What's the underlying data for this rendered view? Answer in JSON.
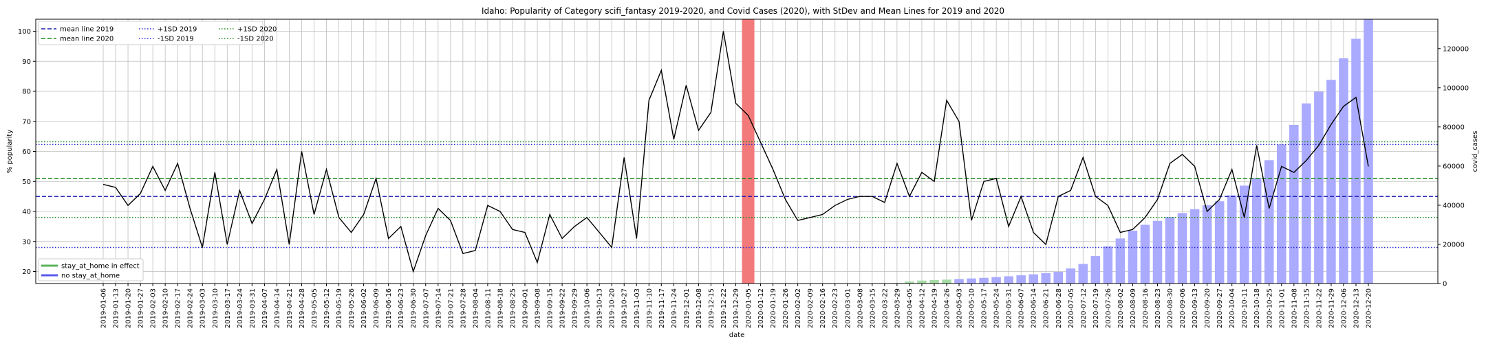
{
  "chart_data": {
    "type": "line",
    "title": "Idaho: Popularity of Category scifi_fantasy 2019-2020, and Covid Cases (2020), with StDev and Mean Lines for 2019 and 2020",
    "xlabel": "date",
    "ylabel": "% popularity",
    "y2label": "covid_cases",
    "ylim": [
      16,
      104
    ],
    "y2lim": [
      0,
      135000
    ],
    "yticks": [
      20,
      30,
      40,
      50,
      60,
      70,
      80,
      90,
      100
    ],
    "y2ticks": [
      0,
      20000,
      40000,
      60000,
      80000,
      100000,
      120000
    ],
    "grid": true,
    "x": [
      "2019-01-06",
      "2019-01-13",
      "2019-01-20",
      "2019-01-27",
      "2019-02-03",
      "2019-02-10",
      "2019-02-17",
      "2019-02-24",
      "2019-03-03",
      "2019-03-10",
      "2019-03-17",
      "2019-03-24",
      "2019-03-31",
      "2019-04-07",
      "2019-04-14",
      "2019-04-21",
      "2019-04-28",
      "2019-05-05",
      "2019-05-12",
      "2019-05-19",
      "2019-05-26",
      "2019-06-02",
      "2019-06-09",
      "2019-06-16",
      "2019-06-23",
      "2019-06-30",
      "2019-07-07",
      "2019-07-14",
      "2019-07-21",
      "2019-07-28",
      "2019-08-04",
      "2019-08-11",
      "2019-08-18",
      "2019-08-25",
      "2019-09-01",
      "2019-09-08",
      "2019-09-15",
      "2019-09-22",
      "2019-09-29",
      "2019-10-06",
      "2019-10-13",
      "2019-10-20",
      "2019-10-27",
      "2019-11-03",
      "2019-11-10",
      "2019-11-17",
      "2019-11-24",
      "2019-12-01",
      "2019-12-08",
      "2019-12-15",
      "2019-12-22",
      "2019-12-29",
      "2020-01-05",
      "2020-01-12",
      "2020-01-19",
      "2020-01-26",
      "2020-02-02",
      "2020-02-09",
      "2020-02-16",
      "2020-02-23",
      "2020-03-01",
      "2020-03-08",
      "2020-03-15",
      "2020-03-22",
      "2020-03-29",
      "2020-04-05",
      "2020-04-12",
      "2020-04-19",
      "2020-04-26",
      "2020-05-03",
      "2020-05-10",
      "2020-05-17",
      "2020-05-24",
      "2020-05-31",
      "2020-06-07",
      "2020-06-14",
      "2020-06-21",
      "2020-06-28",
      "2020-07-05",
      "2020-07-12",
      "2020-07-19",
      "2020-07-26",
      "2020-08-02",
      "2020-08-09",
      "2020-08-16",
      "2020-08-23",
      "2020-08-30",
      "2020-09-06",
      "2020-09-13",
      "2020-09-20",
      "2020-09-27",
      "2020-10-04",
      "2020-10-11",
      "2020-10-18",
      "2020-10-25",
      "2020-11-01",
      "2020-11-08",
      "2020-11-15",
      "2020-11-22",
      "2020-11-29",
      "2020-12-06",
      "2020-12-13",
      "2020-12-20"
    ],
    "series": [
      {
        "name": "popularity",
        "color": "#000000",
        "values": [
          49,
          48,
          42,
          46,
          55,
          47,
          56,
          41,
          28,
          53,
          29,
          47,
          36,
          44,
          54,
          29,
          60,
          39,
          54,
          38,
          33,
          39,
          51,
          31,
          35,
          20,
          32,
          41,
          37,
          26,
          27,
          42,
          40,
          34,
          33,
          23,
          39,
          31,
          35,
          38,
          33,
          28,
          58,
          31,
          77,
          87,
          64,
          82,
          67,
          73,
          100,
          76,
          72,
          63,
          54,
          44,
          37,
          38,
          39,
          42,
          44,
          45,
          45,
          43,
          56,
          45,
          53,
          50,
          77,
          70,
          37,
          50,
          51,
          35,
          45,
          33,
          29,
          45,
          47,
          58,
          45,
          42,
          33,
          34,
          38,
          44,
          56,
          59,
          55,
          40,
          44,
          54,
          38,
          62,
          41,
          55,
          53,
          57,
          62,
          69,
          75,
          78,
          55
        ]
      }
    ],
    "covid_cases": {
      "name": "covid_cases",
      "color": "#7070f0",
      "values": [
        0,
        0,
        0,
        0,
        0,
        0,
        0,
        0,
        0,
        0,
        0,
        0,
        0,
        0,
        0,
        0,
        0,
        0,
        0,
        0,
        0,
        0,
        0,
        0,
        0,
        0,
        0,
        0,
        0,
        0,
        0,
        0,
        0,
        0,
        0,
        0,
        0,
        0,
        0,
        0,
        0,
        0,
        0,
        0,
        0,
        0,
        0,
        0,
        0,
        0,
        0,
        0,
        0,
        0,
        0,
        0,
        0,
        0,
        0,
        0,
        0,
        0,
        0,
        0,
        300,
        1000,
        1500,
        1800,
        2000,
        2300,
        2600,
        2900,
        3300,
        3700,
        4200,
        4700,
        5300,
        6000,
        7700,
        10000,
        14000,
        19000,
        23000,
        27000,
        30000,
        32000,
        34000,
        36000,
        38000,
        40000,
        42000,
        45000,
        50000,
        54000,
        63000,
        71000,
        81000,
        92000,
        98000,
        104000,
        115000,
        125000,
        135000
      ]
    },
    "stay_at_home_weeks": [
      "2020-03-29",
      "2020-04-05",
      "2020-04-12",
      "2020-04-19",
      "2020-04-26"
    ],
    "highlight_week": "2020-01-05",
    "reference_lines": [
      {
        "name": "mean line 2019",
        "value": 45,
        "color": "#1a1ab4",
        "style": "dashed"
      },
      {
        "name": "mean line 2020",
        "value": 51,
        "color": "#1a8a1a",
        "style": "dashed"
      },
      {
        "name": "+1SD 2019",
        "value": 62.3,
        "color": "#2a2ad0",
        "style": "dotted"
      },
      {
        "name": "-1SD 2019",
        "value": 28,
        "color": "#2a2ad0",
        "style": "dotted"
      },
      {
        "name": "+1SD 2020",
        "value": 63.2,
        "color": "#1a8a1a",
        "style": "dotted"
      },
      {
        "name": "-1SD 2020",
        "value": 38,
        "color": "#1a8a1a",
        "style": "dotted"
      }
    ],
    "legend_top": [
      "mean line 2019",
      "mean line 2020",
      "+1SD 2019",
      "-1SD 2019",
      "+1SD 2020",
      "-1SD 2020"
    ],
    "legend_bottom": [
      {
        "name": "stay_at_home in effect",
        "color": "#5ab45a"
      },
      {
        "name": "no stay_at_home",
        "color": "#5a5aeb"
      }
    ],
    "colors": {
      "bar_default": "#aaaaff",
      "bar_stay_home": "#a6dba6",
      "highlight": "#f27a7a",
      "grid": "#bdbdbd"
    }
  }
}
